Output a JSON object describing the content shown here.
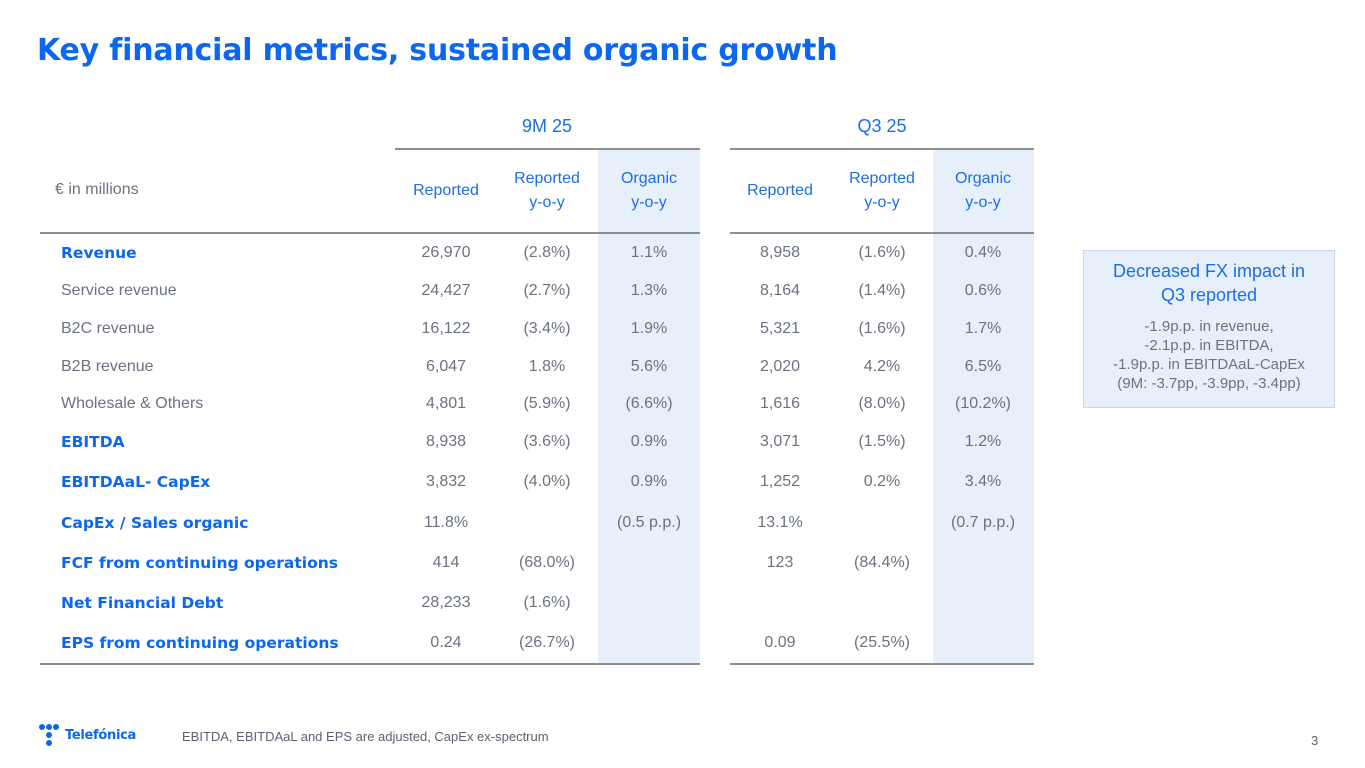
{
  "title": "Key financial metrics, sustained organic growth",
  "table": {
    "unit_label": "€ in millions",
    "groups": [
      {
        "label": "9M 25",
        "columns": [
          [
            "Reported"
          ],
          [
            "Reported",
            "y-o-y"
          ],
          [
            "Organic",
            "y-o-y"
          ]
        ]
      },
      {
        "label": "Q3 25",
        "columns": [
          [
            "Reported"
          ],
          [
            "Reported",
            "y-o-y"
          ],
          [
            "Organic",
            "y-o-y"
          ]
        ]
      }
    ],
    "rows": [
      {
        "label": "Revenue",
        "bold": true,
        "values": [
          "26,970",
          "(2.8%)",
          "1.1%",
          "8,958",
          "(1.6%)",
          "0.4%"
        ]
      },
      {
        "label": "Service revenue",
        "bold": false,
        "values": [
          "24,427",
          "(2.7%)",
          "1.3%",
          "8,164",
          "(1.4%)",
          "0.6%"
        ]
      },
      {
        "label": "B2C revenue",
        "bold": false,
        "values": [
          "16,122",
          "(3.4%)",
          "1.9%",
          "5,321",
          "(1.6%)",
          "1.7%"
        ]
      },
      {
        "label": "B2B revenue",
        "bold": false,
        "values": [
          "6,047",
          "1.8%",
          "5.6%",
          "2,020",
          "4.2%",
          "6.5%"
        ]
      },
      {
        "label": "Wholesale & Others",
        "bold": false,
        "values": [
          "4,801",
          "(5.9%)",
          "(6.6%)",
          "1,616",
          "(8.0%)",
          "(10.2%)"
        ]
      },
      {
        "label": "EBITDA",
        "bold": true,
        "values": [
          "8,938",
          "(3.6%)",
          "0.9%",
          "3,071",
          "(1.5%)",
          "1.2%"
        ]
      },
      {
        "label": "EBITDAaL- CapEx",
        "bold": true,
        "values": [
          "3,832",
          "(4.0%)",
          "0.9%",
          "1,252",
          "0.2%",
          "3.4%"
        ]
      },
      {
        "label": "CapEx / Sales organic",
        "bold": true,
        "values": [
          "11.8%",
          "",
          "(0.5 p.p.)",
          "13.1%",
          "",
          "(0.7 p.p.)"
        ]
      },
      {
        "label": "FCF from continuing operations",
        "bold": true,
        "values": [
          "414",
          "(68.0%)",
          "",
          "123",
          "(84.4%)",
          ""
        ]
      },
      {
        "label": "Net Financial Debt",
        "bold": true,
        "values": [
          "28,233",
          "(1.6%)",
          "",
          "",
          "",
          ""
        ]
      },
      {
        "label": "EPS from continuing operations",
        "bold": true,
        "values": [
          "0.24",
          "(26.7%)",
          "",
          "0.09",
          "(25.5%)",
          ""
        ]
      }
    ]
  },
  "callout": {
    "title_lines": [
      "Decreased FX impact in",
      "Q3 reported"
    ],
    "body_lines": [
      " -1.9p.p. in revenue,",
      "-2.1p.p. in EBITDA,",
      "-1.9p.p. in EBITDAaL-CapEx",
      "(9M: -3.7pp, -3.9pp, -3.4pp)"
    ]
  },
  "footer": {
    "logo_text": "Telefónica",
    "note": "EBITDA, EBITDAaL and EPS are adjusted, CapEx ex-spectrum",
    "page_number": "3"
  },
  "colors": {
    "brand_blue": "#0b66f0",
    "organic_highlight": "#e7effb"
  }
}
